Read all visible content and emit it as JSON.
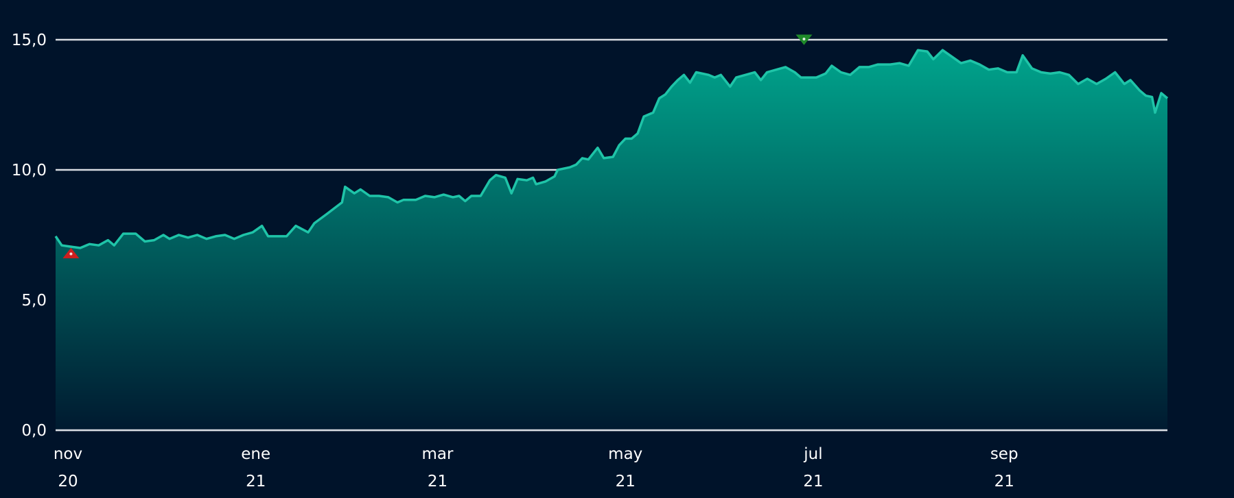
{
  "chart_data": {
    "type": "area",
    "title": "",
    "xlabel": "",
    "ylabel": "",
    "x_range": [
      "2020-11-01",
      "2021-10-28"
    ],
    "ylim": [
      0,
      15
    ],
    "y_ticks": [
      {
        "value": 0,
        "label": "0,0"
      },
      {
        "value": 5,
        "label": "5,0"
      },
      {
        "value": 10,
        "label": "10,0"
      },
      {
        "value": 15,
        "label": "15,0"
      }
    ],
    "x_ticks": [
      {
        "date": "2020-11-01",
        "month": "nov",
        "year": "20"
      },
      {
        "date": "2021-01-01",
        "month": "ene",
        "year": "21"
      },
      {
        "date": "2021-03-01",
        "month": "mar",
        "year": "21"
      },
      {
        "date": "2021-05-01",
        "month": "may",
        "year": "21"
      },
      {
        "date": "2021-07-01",
        "month": "jul",
        "year": "21"
      },
      {
        "date": "2021-09-01",
        "month": "sep",
        "year": "21"
      }
    ],
    "grid": true,
    "legend": "none",
    "colors": {
      "background": "#00132a",
      "line": "#1fc4a8",
      "fill_top": "#00a48c",
      "fill_bottom": "#001a30",
      "grid": "#d9dde3",
      "min_marker": "#cc1f1f",
      "max_marker": "#1f8a2a"
    },
    "markers": [
      {
        "type": "min",
        "date": "2020-11-06",
        "value": 6.8
      },
      {
        "type": "max",
        "date": "2021-07-02",
        "value": 15.0
      }
    ],
    "series": [
      {
        "points": [
          [
            "2020-11-01",
            7.45
          ],
          [
            "2020-11-03",
            7.1
          ],
          [
            "2020-11-06",
            7.05
          ],
          [
            "2020-11-09",
            7.0
          ],
          [
            "2020-11-12",
            7.15
          ],
          [
            "2020-11-15",
            7.1
          ],
          [
            "2020-11-18",
            7.3
          ],
          [
            "2020-11-20",
            7.1
          ],
          [
            "2020-11-23",
            7.55
          ],
          [
            "2020-11-27",
            7.55
          ],
          [
            "2020-11-30",
            7.25
          ],
          [
            "2020-12-03",
            7.3
          ],
          [
            "2020-12-06",
            7.5
          ],
          [
            "2020-12-08",
            7.35
          ],
          [
            "2020-12-11",
            7.5
          ],
          [
            "2020-12-14",
            7.4
          ],
          [
            "2020-12-17",
            7.5
          ],
          [
            "2020-12-20",
            7.35
          ],
          [
            "2020-12-23",
            7.45
          ],
          [
            "2020-12-26",
            7.5
          ],
          [
            "2020-12-29",
            7.35
          ],
          [
            "2021-01-01",
            7.5
          ],
          [
            "2021-01-04",
            7.6
          ],
          [
            "2021-01-07",
            7.85
          ],
          [
            "2021-01-09",
            7.45
          ],
          [
            "2021-01-15",
            7.45
          ],
          [
            "2021-01-18",
            7.85
          ],
          [
            "2021-01-22",
            7.6
          ],
          [
            "2021-01-24",
            7.95
          ],
          [
            "2021-01-28",
            8.3
          ],
          [
            "2021-02-02",
            8.75
          ],
          [
            "2021-02-03",
            9.35
          ],
          [
            "2021-02-06",
            9.1
          ],
          [
            "2021-02-08",
            9.25
          ],
          [
            "2021-02-11",
            9.0
          ],
          [
            "2021-02-14",
            9.0
          ],
          [
            "2021-02-17",
            8.95
          ],
          [
            "2021-02-20",
            8.75
          ],
          [
            "2021-02-22",
            8.85
          ],
          [
            "2021-02-26",
            8.85
          ],
          [
            "2021-03-01",
            9.0
          ],
          [
            "2021-03-04",
            8.95
          ],
          [
            "2021-03-07",
            9.05
          ],
          [
            "2021-03-10",
            8.95
          ],
          [
            "2021-03-12",
            9.0
          ],
          [
            "2021-03-14",
            8.8
          ],
          [
            "2021-03-16",
            9.0
          ],
          [
            "2021-03-19",
            9.0
          ],
          [
            "2021-03-22",
            9.6
          ],
          [
            "2021-03-24",
            9.8
          ],
          [
            "2021-03-27",
            9.7
          ],
          [
            "2021-03-29",
            9.1
          ],
          [
            "2021-03-31",
            9.65
          ],
          [
            "2021-04-03",
            9.6
          ],
          [
            "2021-04-05",
            9.7
          ],
          [
            "2021-04-06",
            9.45
          ],
          [
            "2021-04-09",
            9.55
          ],
          [
            "2021-04-12",
            9.75
          ],
          [
            "2021-04-13",
            10.0
          ],
          [
            "2021-04-17",
            10.1
          ],
          [
            "2021-04-19",
            10.2
          ],
          [
            "2021-04-21",
            10.45
          ],
          [
            "2021-04-23",
            10.4
          ],
          [
            "2021-04-26",
            10.85
          ],
          [
            "2021-04-28",
            10.45
          ],
          [
            "2021-05-01",
            10.5
          ],
          [
            "2021-05-03",
            10.95
          ],
          [
            "2021-05-05",
            11.2
          ],
          [
            "2021-05-07",
            11.2
          ],
          [
            "2021-05-09",
            11.4
          ],
          [
            "2021-05-11",
            12.05
          ],
          [
            "2021-05-14",
            12.2
          ],
          [
            "2021-05-16",
            12.75
          ],
          [
            "2021-05-18",
            12.9
          ],
          [
            "2021-05-20",
            13.2
          ],
          [
            "2021-05-22",
            13.45
          ],
          [
            "2021-05-24",
            13.65
          ],
          [
            "2021-05-26",
            13.35
          ],
          [
            "2021-05-28",
            13.75
          ],
          [
            "2021-06-01",
            13.65
          ],
          [
            "2021-06-03",
            13.55
          ],
          [
            "2021-06-05",
            13.65
          ],
          [
            "2021-06-08",
            13.2
          ],
          [
            "2021-06-10",
            13.55
          ],
          [
            "2021-06-13",
            13.65
          ],
          [
            "2021-06-16",
            13.75
          ],
          [
            "2021-06-18",
            13.45
          ],
          [
            "2021-06-20",
            13.75
          ],
          [
            "2021-06-23",
            13.85
          ],
          [
            "2021-06-26",
            13.95
          ],
          [
            "2021-06-29",
            13.75
          ],
          [
            "2021-07-01",
            13.55
          ],
          [
            "2021-07-03",
            13.55
          ],
          [
            "2021-07-06",
            13.55
          ],
          [
            "2021-07-09",
            13.7
          ],
          [
            "2021-07-11",
            14.0
          ],
          [
            "2021-07-14",
            13.75
          ],
          [
            "2021-07-17",
            13.65
          ],
          [
            "2021-07-20",
            13.95
          ],
          [
            "2021-07-23",
            13.95
          ],
          [
            "2021-07-26",
            14.05
          ],
          [
            "2021-07-30",
            14.05
          ],
          [
            "2021-08-02",
            14.1
          ],
          [
            "2021-08-05",
            14.0
          ],
          [
            "2021-08-08",
            14.6
          ],
          [
            "2021-08-11",
            14.55
          ],
          [
            "2021-08-13",
            14.25
          ],
          [
            "2021-08-16",
            14.6
          ],
          [
            "2021-08-19",
            14.35
          ],
          [
            "2021-08-22",
            14.1
          ],
          [
            "2021-08-25",
            14.2
          ],
          [
            "2021-08-28",
            14.05
          ],
          [
            "2021-08-31",
            13.85
          ],
          [
            "2021-09-03",
            13.9
          ],
          [
            "2021-09-06",
            13.75
          ],
          [
            "2021-09-09",
            13.75
          ],
          [
            "2021-09-11",
            14.4
          ],
          [
            "2021-09-14",
            13.9
          ],
          [
            "2021-09-17",
            13.75
          ],
          [
            "2021-09-20",
            13.7
          ],
          [
            "2021-09-23",
            13.75
          ],
          [
            "2021-09-26",
            13.65
          ],
          [
            "2021-09-29",
            13.3
          ],
          [
            "2021-10-02",
            13.5
          ],
          [
            "2021-10-05",
            13.3
          ],
          [
            "2021-10-08",
            13.5
          ],
          [
            "2021-10-11",
            13.75
          ],
          [
            "2021-10-14",
            13.3
          ],
          [
            "2021-10-16",
            13.45
          ],
          [
            "2021-10-19",
            13.05
          ],
          [
            "2021-10-21",
            12.85
          ],
          [
            "2021-10-23",
            12.8
          ],
          [
            "2021-10-24",
            12.2
          ],
          [
            "2021-10-26",
            12.95
          ],
          [
            "2021-10-28",
            12.75
          ]
        ]
      }
    ]
  }
}
